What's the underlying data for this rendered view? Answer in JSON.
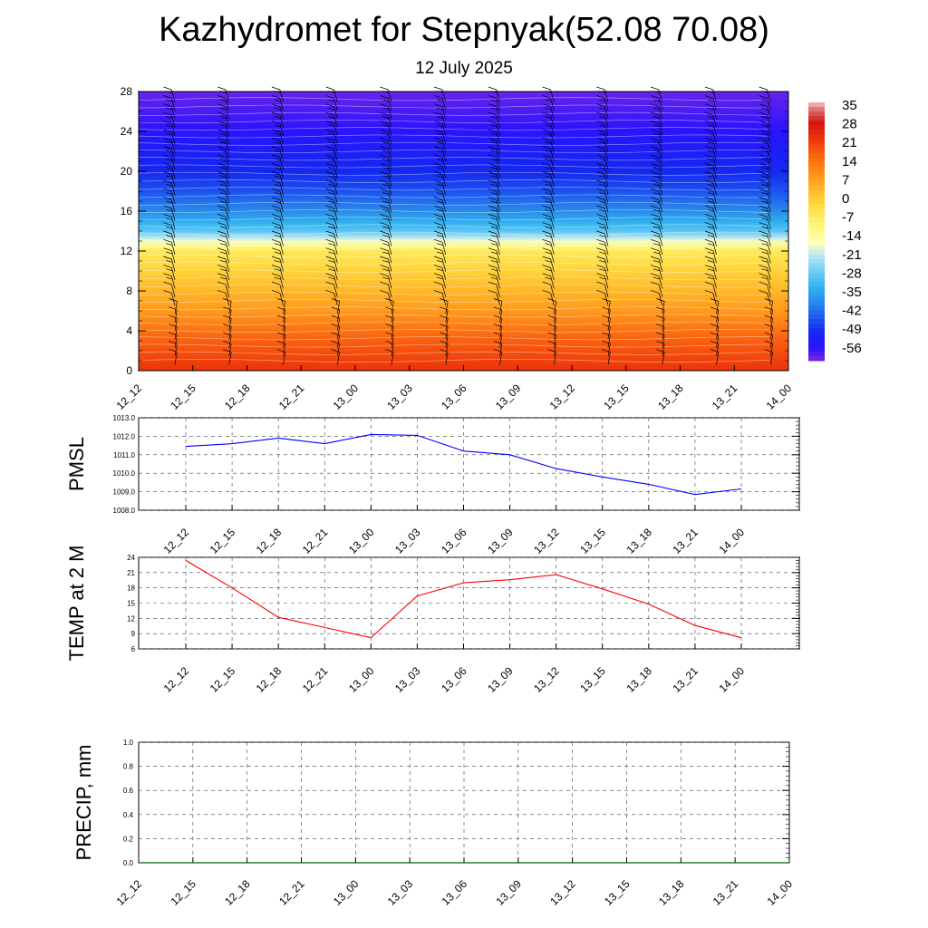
{
  "header": {
    "title": "Kazhydromet for Stepnyak(52.08 70.08)",
    "subtitle": "12 July 2025"
  },
  "chart_data": [
    {
      "type": "heatmap",
      "name": "cross-section",
      "x": [
        "12_12",
        "12_15",
        "12_18",
        "12_21",
        "13_00",
        "13_03",
        "13_06",
        "13_09",
        "13_12",
        "13_15",
        "13_18",
        "13_21",
        "14_00"
      ],
      "y_ticks": [
        0,
        4,
        8,
        12,
        16,
        20,
        24,
        28
      ],
      "ylim": [
        0,
        28
      ],
      "colorbar": {
        "labels": [
          "35",
          "28",
          "21",
          "14",
          "7",
          "0",
          "-7",
          "-14",
          "-21",
          "-28",
          "-35",
          "-42",
          "-49",
          "-56"
        ],
        "range": [
          -63,
          38
        ]
      },
      "temperature_profile": {
        "levels": [
          0,
          3,
          6,
          9,
          12,
          14,
          16,
          18,
          20,
          24,
          28
        ],
        "values": [
          24,
          18,
          9,
          2,
          -6,
          -30,
          -40,
          -47,
          -52,
          -58,
          -62
        ]
      },
      "overlay": "wind barbs",
      "grid": false
    },
    {
      "type": "line",
      "name": "pmsl",
      "ylabel": "PMSL",
      "x": [
        "12_12",
        "12_15",
        "12_18",
        "12_21",
        "13_00",
        "13_03",
        "13_06",
        "13_09",
        "13_12",
        "13_15",
        "13_18",
        "13_21",
        "14_00"
      ],
      "ylim": [
        1008.0,
        1013.0
      ],
      "y_ticks": [
        "1008.0",
        "1009.0",
        "1010.0",
        "1011.0",
        "1012.0",
        "1013.0"
      ],
      "series": [
        {
          "values": [
            1011.45,
            1011.6,
            1011.9,
            1011.6,
            1012.1,
            1012.05,
            1011.2,
            1011.0,
            1010.25,
            1009.8,
            1009.4,
            1008.85,
            1009.15
          ],
          "color": "#0000ff"
        }
      ],
      "grid": true
    },
    {
      "type": "line",
      "name": "temp2m",
      "ylabel": "TEMP at 2 M",
      "x": [
        "12_12",
        "12_15",
        "12_18",
        "12_21",
        "13_00",
        "13_03",
        "13_06",
        "13_09",
        "13_12",
        "13_15",
        "13_18",
        "13_21",
        "14_00"
      ],
      "ylim": [
        6,
        24
      ],
      "y_ticks": [
        "6",
        "9",
        "12",
        "15",
        "18",
        "21",
        "24"
      ],
      "series": [
        {
          "values": [
            23.4,
            18.0,
            12.2,
            10.2,
            8.2,
            16.4,
            19.0,
            19.6,
            20.6,
            17.8,
            14.8,
            10.6,
            8.2
          ],
          "color": "#ff0000"
        }
      ],
      "grid": true
    },
    {
      "type": "line",
      "name": "precip",
      "ylabel": "PRECIP, mm",
      "x": [
        "12_12",
        "12_15",
        "12_18",
        "12_21",
        "13_00",
        "13_03",
        "13_06",
        "13_09",
        "13_12",
        "13_15",
        "13_18",
        "13_21",
        "14_00"
      ],
      "ylim": [
        0.0,
        1.0
      ],
      "y_ticks": [
        "0.0",
        "0.2",
        "0.4",
        "0.6",
        "0.8",
        "1.0"
      ],
      "series": [
        {
          "values": [
            0,
            0,
            0,
            0,
            0,
            0,
            0,
            0,
            0,
            0,
            0,
            0,
            0
          ],
          "color": "#006400"
        }
      ],
      "grid": true
    }
  ]
}
